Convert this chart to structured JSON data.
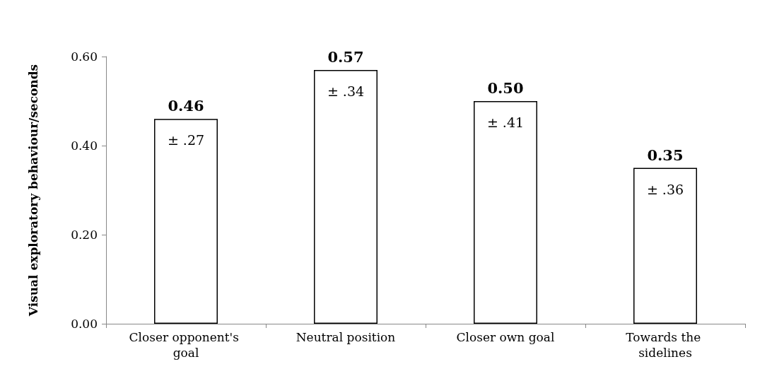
{
  "chart_data": {
    "type": "bar",
    "ylabel": "Visual exploratory behaviour/seconds",
    "categories": [
      "Closer opponent's goal",
      "Neutral position",
      "Closer own goal",
      "Towards the sidelines"
    ],
    "values": [
      0.46,
      0.57,
      0.5,
      0.35
    ],
    "value_labels": [
      "0.46",
      "0.57",
      "0.50",
      "0.35"
    ],
    "color": "#ffffff",
    "ylim": [
      0,
      0.6
    ],
    "yticks": [
      {
        "value": 0,
        "label": "0.00"
      },
      {
        "value": 0.2,
        "label": "0.20"
      },
      {
        "value": 0.4,
        "label": "0.40"
      },
      {
        "value": 0.6,
        "label": "0.60"
      }
    ],
    "grid": false,
    "annotations": [
      {
        "text": "± .27",
        "x": "Closer opponent's goal",
        "y": 0.46
      },
      {
        "text": "± .34",
        "x": "Neutral position",
        "y": 0.57
      },
      {
        "text": "± .41",
        "x": "Closer own goal",
        "y": 0.5
      },
      {
        "text": "± .36",
        "x": "Towards the sidelines",
        "y": 0.35
      }
    ]
  }
}
